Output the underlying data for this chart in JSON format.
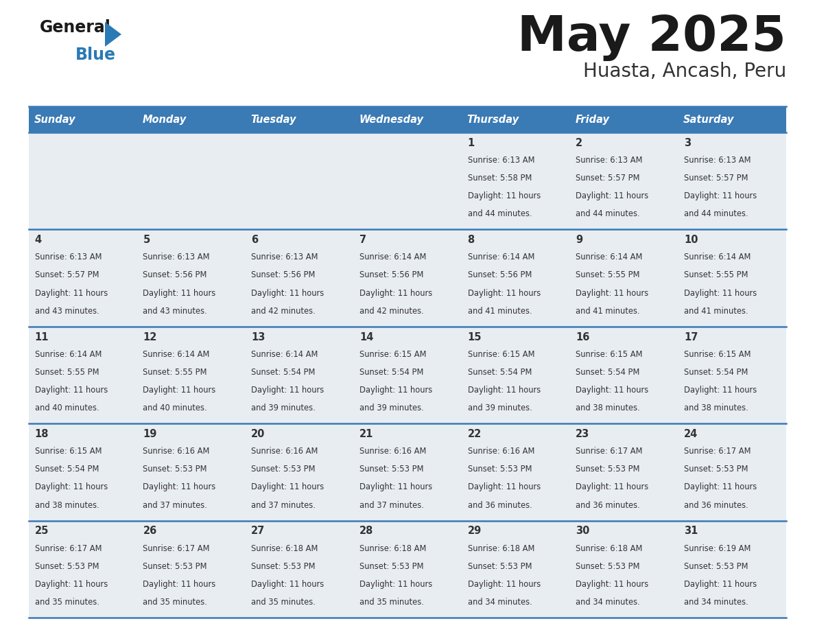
{
  "title": "May 2025",
  "subtitle": "Huasta, Ancash, Peru",
  "days_of_week": [
    "Sunday",
    "Monday",
    "Tuesday",
    "Wednesday",
    "Thursday",
    "Friday",
    "Saturday"
  ],
  "header_bg": "#3a7ab5",
  "header_text": "#ffffff",
  "row_bg": "#e8edf2",
  "cell_border": "#3a7ab5",
  "day_number_color": "#333333",
  "info_text_color": "#333333",
  "title_color": "#1a1a1a",
  "subtitle_color": "#333333",
  "logo_general_color": "#1a1a1a",
  "logo_blue_color": "#2a7ab5",
  "calendar": [
    [
      null,
      null,
      null,
      null,
      {
        "day": 1,
        "sunrise": "6:13 AM",
        "sunset": "5:58 PM",
        "daylight": "11 hours and 44 minutes"
      },
      {
        "day": 2,
        "sunrise": "6:13 AM",
        "sunset": "5:57 PM",
        "daylight": "11 hours and 44 minutes"
      },
      {
        "day": 3,
        "sunrise": "6:13 AM",
        "sunset": "5:57 PM",
        "daylight": "11 hours and 44 minutes"
      }
    ],
    [
      {
        "day": 4,
        "sunrise": "6:13 AM",
        "sunset": "5:57 PM",
        "daylight": "11 hours and 43 minutes"
      },
      {
        "day": 5,
        "sunrise": "6:13 AM",
        "sunset": "5:56 PM",
        "daylight": "11 hours and 43 minutes"
      },
      {
        "day": 6,
        "sunrise": "6:13 AM",
        "sunset": "5:56 PM",
        "daylight": "11 hours and 42 minutes"
      },
      {
        "day": 7,
        "sunrise": "6:14 AM",
        "sunset": "5:56 PM",
        "daylight": "11 hours and 42 minutes"
      },
      {
        "day": 8,
        "sunrise": "6:14 AM",
        "sunset": "5:56 PM",
        "daylight": "11 hours and 41 minutes"
      },
      {
        "day": 9,
        "sunrise": "6:14 AM",
        "sunset": "5:55 PM",
        "daylight": "11 hours and 41 minutes"
      },
      {
        "day": 10,
        "sunrise": "6:14 AM",
        "sunset": "5:55 PM",
        "daylight": "11 hours and 41 minutes"
      }
    ],
    [
      {
        "day": 11,
        "sunrise": "6:14 AM",
        "sunset": "5:55 PM",
        "daylight": "11 hours and 40 minutes"
      },
      {
        "day": 12,
        "sunrise": "6:14 AM",
        "sunset": "5:55 PM",
        "daylight": "11 hours and 40 minutes"
      },
      {
        "day": 13,
        "sunrise": "6:14 AM",
        "sunset": "5:54 PM",
        "daylight": "11 hours and 39 minutes"
      },
      {
        "day": 14,
        "sunrise": "6:15 AM",
        "sunset": "5:54 PM",
        "daylight": "11 hours and 39 minutes"
      },
      {
        "day": 15,
        "sunrise": "6:15 AM",
        "sunset": "5:54 PM",
        "daylight": "11 hours and 39 minutes"
      },
      {
        "day": 16,
        "sunrise": "6:15 AM",
        "sunset": "5:54 PM",
        "daylight": "11 hours and 38 minutes"
      },
      {
        "day": 17,
        "sunrise": "6:15 AM",
        "sunset": "5:54 PM",
        "daylight": "11 hours and 38 minutes"
      }
    ],
    [
      {
        "day": 18,
        "sunrise": "6:15 AM",
        "sunset": "5:54 PM",
        "daylight": "11 hours and 38 minutes"
      },
      {
        "day": 19,
        "sunrise": "6:16 AM",
        "sunset": "5:53 PM",
        "daylight": "11 hours and 37 minutes"
      },
      {
        "day": 20,
        "sunrise": "6:16 AM",
        "sunset": "5:53 PM",
        "daylight": "11 hours and 37 minutes"
      },
      {
        "day": 21,
        "sunrise": "6:16 AM",
        "sunset": "5:53 PM",
        "daylight": "11 hours and 37 minutes"
      },
      {
        "day": 22,
        "sunrise": "6:16 AM",
        "sunset": "5:53 PM",
        "daylight": "11 hours and 36 minutes"
      },
      {
        "day": 23,
        "sunrise": "6:17 AM",
        "sunset": "5:53 PM",
        "daylight": "11 hours and 36 minutes"
      },
      {
        "day": 24,
        "sunrise": "6:17 AM",
        "sunset": "5:53 PM",
        "daylight": "11 hours and 36 minutes"
      }
    ],
    [
      {
        "day": 25,
        "sunrise": "6:17 AM",
        "sunset": "5:53 PM",
        "daylight": "11 hours and 35 minutes"
      },
      {
        "day": 26,
        "sunrise": "6:17 AM",
        "sunset": "5:53 PM",
        "daylight": "11 hours and 35 minutes"
      },
      {
        "day": 27,
        "sunrise": "6:18 AM",
        "sunset": "5:53 PM",
        "daylight": "11 hours and 35 minutes"
      },
      {
        "day": 28,
        "sunrise": "6:18 AM",
        "sunset": "5:53 PM",
        "daylight": "11 hours and 35 minutes"
      },
      {
        "day": 29,
        "sunrise": "6:18 AM",
        "sunset": "5:53 PM",
        "daylight": "11 hours and 34 minutes"
      },
      {
        "day": 30,
        "sunrise": "6:18 AM",
        "sunset": "5:53 PM",
        "daylight": "11 hours and 34 minutes"
      },
      {
        "day": 31,
        "sunrise": "6:19 AM",
        "sunset": "5:53 PM",
        "daylight": "11 hours and 34 minutes"
      }
    ]
  ],
  "figsize": [
    11.88,
    9.18
  ],
  "dpi": 100
}
